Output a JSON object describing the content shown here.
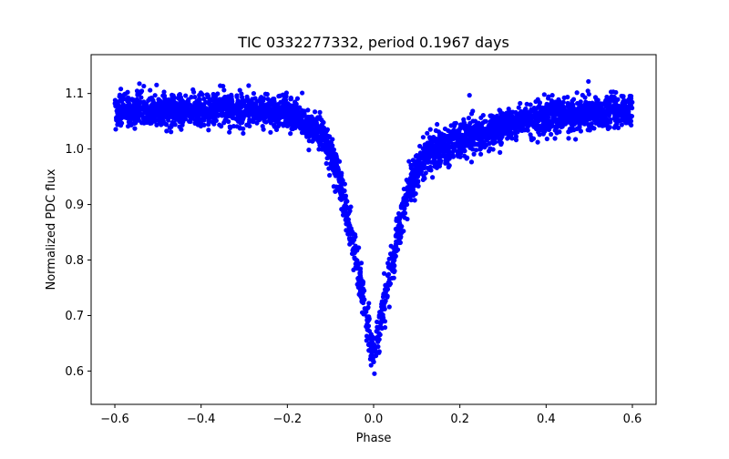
{
  "chart_data": {
    "type": "scatter",
    "title": "TIC 0332277332, period 0.1967 days",
    "xlabel": "Phase",
    "ylabel": "Normalized PDC flux",
    "xlim": [
      -0.655,
      0.655
    ],
    "ylim": [
      0.54,
      1.17
    ],
    "x_ticks": [
      -0.6,
      -0.4,
      -0.2,
      0.0,
      0.2,
      0.4,
      0.6
    ],
    "x_tick_labels": [
      "−0.6",
      "−0.4",
      "−0.2",
      "0.0",
      "0.2",
      "0.4",
      "0.6"
    ],
    "y_ticks": [
      0.6,
      0.7,
      0.8,
      0.9,
      1.0,
      1.1
    ],
    "y_tick_labels": [
      "0.6",
      "0.7",
      "0.8",
      "0.9",
      "1.0",
      "1.1"
    ],
    "marker_color": "#0000ff",
    "grid": false,
    "series": [
      {
        "name": "PDC flux",
        "phase_range": [
          -0.6,
          0.6
        ],
        "n_points": 3400,
        "baseline_flux": 1.065,
        "baseline_scatter": 0.015,
        "baseline_slope": 0.03,
        "eclipse_center_phase": 0.0,
        "eclipse_min_flux": 0.63,
        "eclipse_half_width_phase": 0.055,
        "eclipse_scatter": 0.02,
        "profile_points": [
          {
            "phase": -0.6,
            "flux": 1.07
          },
          {
            "phase": -0.4,
            "flux": 1.07
          },
          {
            "phase": -0.2,
            "flux": 1.065
          },
          {
            "phase": -0.12,
            "flux": 1.03
          },
          {
            "phase": -0.08,
            "flux": 0.95
          },
          {
            "phase": -0.04,
            "flux": 0.8
          },
          {
            "phase": 0.0,
            "flux": 0.63
          },
          {
            "phase": 0.04,
            "flux": 0.78
          },
          {
            "phase": 0.08,
            "flux": 0.93
          },
          {
            "phase": 0.12,
            "flux": 0.99
          },
          {
            "phase": 0.2,
            "flux": 1.02
          },
          {
            "phase": 0.4,
            "flux": 1.06
          },
          {
            "phase": 0.6,
            "flux": 1.07
          }
        ]
      }
    ]
  }
}
